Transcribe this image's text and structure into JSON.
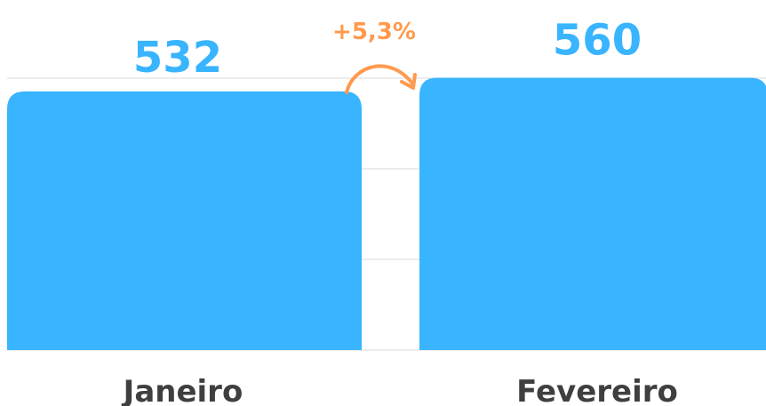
{
  "chart_data": {
    "type": "bar",
    "categories": [
      "Janeiro",
      "Fevereiro"
    ],
    "values": [
      532,
      560
    ],
    "value_labels": [
      "532",
      "560"
    ],
    "annotation": "+5,3%",
    "ylim": [
      0,
      720
    ],
    "grid": true,
    "colors": {
      "bar": "#39b4ff",
      "value_text": "#39b4ff",
      "annotation": "#ff9a4d",
      "category_text": "#3f3f3f",
      "grid": "#d9d9d9"
    }
  }
}
